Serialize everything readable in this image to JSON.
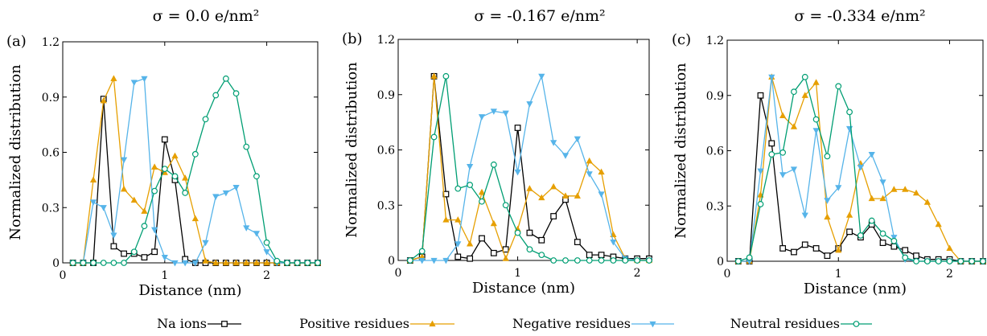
{
  "chart_data": [
    {
      "type": "line",
      "title": "σ = 0.0 e/nm²",
      "panel_label": "(a)",
      "xlabel": "Distance (nm)",
      "ylabel": "Normalized distribution",
      "xlim": [
        0,
        2.5
      ],
      "ylim": [
        0,
        1.2
      ],
      "xticks": [
        "0",
        "1",
        "2"
      ],
      "yticks": [
        "0",
        "0.3",
        "0.6",
        "0.9",
        "1.2"
      ],
      "grid": false,
      "series": [
        {
          "name": "Na ions",
          "color": "#000000",
          "marker": "square",
          "x": [
            0.1,
            0.2,
            0.3,
            0.4,
            0.5,
            0.6,
            0.7,
            0.8,
            0.9,
            1.0,
            1.1,
            1.2,
            1.3,
            1.4,
            1.5,
            1.6,
            1.7,
            1.8,
            1.9,
            2.0,
            2.1,
            2.2,
            2.3,
            2.4,
            2.5
          ],
          "y": [
            0,
            0,
            0,
            0.89,
            0.09,
            0.05,
            0.05,
            0.03,
            0.06,
            0.67,
            0.45,
            0.02,
            0,
            0,
            0,
            0,
            0,
            0,
            0,
            0,
            0,
            0,
            0,
            0,
            0
          ]
        },
        {
          "name": "Positive residues",
          "color": "#E69F00",
          "marker": "triangle-up",
          "x": [
            0.1,
            0.2,
            0.3,
            0.4,
            0.5,
            0.6,
            0.7,
            0.8,
            0.9,
            1.0,
            1.1,
            1.2,
            1.3,
            1.4,
            1.5,
            1.6,
            1.7,
            1.8,
            1.9,
            2.0,
            2.1,
            2.2,
            2.3,
            2.4,
            2.5
          ],
          "y": [
            0,
            0,
            0.45,
            0.88,
            1.0,
            0.4,
            0.34,
            0.28,
            0.52,
            0.49,
            0.58,
            0.46,
            0.24,
            0.01,
            0,
            0,
            0,
            0,
            0,
            0,
            0,
            0,
            0,
            0,
            0
          ]
        },
        {
          "name": "Negative residues",
          "color": "#56B4E9",
          "marker": "triangle-down",
          "x": [
            0.1,
            0.2,
            0.3,
            0.4,
            0.5,
            0.6,
            0.7,
            0.8,
            0.9,
            1.0,
            1.1,
            1.2,
            1.3,
            1.4,
            1.5,
            1.6,
            1.7,
            1.8,
            1.9,
            2.0,
            2.1,
            2.2,
            2.3,
            2.4,
            2.5
          ],
          "y": [
            0,
            0,
            0.33,
            0.3,
            0.15,
            0.56,
            0.98,
            1.0,
            0.18,
            0.03,
            0,
            0,
            0,
            0.11,
            0.36,
            0.38,
            0.41,
            0.19,
            0.16,
            0.06,
            0,
            0,
            0,
            0,
            0
          ]
        },
        {
          "name": "Neutral residues",
          "color": "#009E73",
          "marker": "circle",
          "x": [
            0.1,
            0.2,
            0.3,
            0.4,
            0.5,
            0.6,
            0.7,
            0.8,
            0.9,
            1.0,
            1.1,
            1.2,
            1.3,
            1.4,
            1.5,
            1.6,
            1.7,
            1.8,
            1.9,
            2.0,
            2.1,
            2.2,
            2.3,
            2.4,
            2.5
          ],
          "y": [
            0,
            0,
            0,
            0,
            0,
            0,
            0.06,
            0.2,
            0.39,
            0.51,
            0.47,
            0.38,
            0.59,
            0.78,
            0.91,
            1.0,
            0.92,
            0.63,
            0.47,
            0.11,
            0.01,
            0,
            0,
            0,
            0
          ]
        }
      ]
    },
    {
      "type": "line",
      "title": "σ = -0.167 e/nm²",
      "panel_label": "(b)",
      "xlabel": "Distance (nm)",
      "ylabel": "Normalized distribution",
      "xlim": [
        0,
        2.1
      ],
      "ylim": [
        0,
        1.2
      ],
      "xticks": [
        "0",
        "1",
        "2"
      ],
      "yticks": [
        "0",
        "0.3",
        "0.6",
        "0.9",
        "1.2"
      ],
      "grid": false,
      "series": [
        {
          "name": "Na ions",
          "color": "#000000",
          "marker": "square",
          "x": [
            0.1,
            0.2,
            0.3,
            0.4,
            0.5,
            0.6,
            0.7,
            0.8,
            0.9,
            1.0,
            1.1,
            1.2,
            1.3,
            1.4,
            1.5,
            1.6,
            1.7,
            1.8,
            1.9,
            2.0,
            2.1
          ],
          "y": [
            0,
            0.02,
            1.0,
            0.36,
            0.02,
            0.01,
            0.12,
            0.04,
            0.06,
            0.72,
            0.15,
            0.11,
            0.24,
            0.33,
            0.1,
            0.03,
            0.03,
            0.02,
            0.01,
            0.01,
            0.01
          ]
        },
        {
          "name": "Positive residues",
          "color": "#E69F00",
          "marker": "triangle-up",
          "x": [
            0.1,
            0.2,
            0.3,
            0.4,
            0.5,
            0.6,
            0.7,
            0.8,
            0.9,
            1.0,
            1.1,
            1.2,
            1.3,
            1.4,
            1.5,
            1.6,
            1.7,
            1.8,
            1.9,
            2.0,
            2.1
          ],
          "y": [
            0,
            0.02,
            1.0,
            0.22,
            0.22,
            0.09,
            0.37,
            0.2,
            0.01,
            0.17,
            0.39,
            0.34,
            0.4,
            0.35,
            0.35,
            0.54,
            0.48,
            0.14,
            0.01,
            0,
            0
          ]
        },
        {
          "name": "Negative residues",
          "color": "#56B4E9",
          "marker": "triangle-down",
          "x": [
            0.1,
            0.2,
            0.3,
            0.4,
            0.5,
            0.6,
            0.7,
            0.8,
            0.9,
            1.0,
            1.1,
            1.2,
            1.3,
            1.4,
            1.5,
            1.6,
            1.7,
            1.8,
            1.9,
            2.0,
            2.1
          ],
          "y": [
            0,
            0,
            0,
            0,
            0.09,
            0.51,
            0.78,
            0.81,
            0.8,
            0.48,
            0.85,
            1.0,
            0.64,
            0.57,
            0.66,
            0.47,
            0.36,
            0.1,
            0.01,
            0,
            0
          ]
        },
        {
          "name": "Neutral residues",
          "color": "#009E73",
          "marker": "circle",
          "x": [
            0.1,
            0.2,
            0.3,
            0.4,
            0.5,
            0.6,
            0.7,
            0.8,
            0.9,
            1.0,
            1.1,
            1.2,
            1.3,
            1.4,
            1.5,
            1.6,
            1.7,
            1.8,
            1.9,
            2.0,
            2.1
          ],
          "y": [
            0,
            0.05,
            0.67,
            1.0,
            0.39,
            0.41,
            0.32,
            0.52,
            0.3,
            0.15,
            0.06,
            0.03,
            0,
            0,
            0,
            0,
            0,
            0,
            0,
            0,
            0
          ]
        }
      ]
    },
    {
      "type": "line",
      "title": "σ = -0.334 e/nm²",
      "panel_label": "(c)",
      "xlabel": "Distance (nm)",
      "ylabel": "Normalized distribution",
      "xlim": [
        0,
        2.3
      ],
      "ylim": [
        0,
        1.2
      ],
      "xticks": [
        "0",
        "1",
        "2"
      ],
      "yticks": [
        "0",
        "0.3",
        "0.6",
        "0.9",
        "1.2"
      ],
      "grid": false,
      "series": [
        {
          "name": "Na ions",
          "color": "#000000",
          "marker": "square",
          "x": [
            0.1,
            0.2,
            0.3,
            0.4,
            0.5,
            0.6,
            0.7,
            0.8,
            0.9,
            1.0,
            1.1,
            1.2,
            1.3,
            1.4,
            1.5,
            1.6,
            1.7,
            1.8,
            1.9,
            2.0,
            2.1,
            2.2,
            2.3
          ],
          "y": [
            0,
            0,
            0.9,
            0.64,
            0.07,
            0.05,
            0.09,
            0.07,
            0.03,
            0.07,
            0.16,
            0.13,
            0.2,
            0.1,
            0.08,
            0.06,
            0.03,
            0.01,
            0.01,
            0.01,
            0,
            0,
            0
          ]
        },
        {
          "name": "Positive residues",
          "color": "#E69F00",
          "marker": "triangle-up",
          "x": [
            0.1,
            0.2,
            0.3,
            0.4,
            0.5,
            0.6,
            0.7,
            0.8,
            0.9,
            1.0,
            1.1,
            1.2,
            1.3,
            1.4,
            1.5,
            1.6,
            1.7,
            1.8,
            1.9,
            2.0,
            2.1,
            2.2,
            2.3
          ],
          "y": [
            0,
            0,
            0.36,
            1.0,
            0.79,
            0.73,
            0.9,
            0.97,
            0.24,
            0.06,
            0.25,
            0.53,
            0.34,
            0.34,
            0.39,
            0.39,
            0.37,
            0.32,
            0.2,
            0.07,
            0,
            0,
            0
          ]
        },
        {
          "name": "Negative residues",
          "color": "#56B4E9",
          "marker": "triangle-down",
          "x": [
            0.1,
            0.2,
            0.3,
            0.4,
            0.5,
            0.6,
            0.7,
            0.8,
            0.9,
            1.0,
            1.1,
            1.2,
            1.3,
            1.4,
            1.5,
            1.6,
            1.7,
            1.8,
            1.9,
            2.0,
            2.1,
            2.2,
            2.3
          ],
          "y": [
            0,
            0,
            0.49,
            1.0,
            0.47,
            0.5,
            0.25,
            0.71,
            0.33,
            0.4,
            0.72,
            0.51,
            0.58,
            0.43,
            0.13,
            0.01,
            0,
            0,
            0,
            0,
            0,
            0,
            0
          ]
        },
        {
          "name": "Neutral residues",
          "color": "#009E73",
          "marker": "circle",
          "x": [
            0.1,
            0.2,
            0.3,
            0.4,
            0.5,
            0.6,
            0.7,
            0.8,
            0.9,
            1.0,
            1.1,
            1.2,
            1.3,
            1.4,
            1.5,
            1.6,
            1.7,
            1.8,
            1.9,
            2.0,
            2.1,
            2.2,
            2.3
          ],
          "y": [
            0,
            0.02,
            0.31,
            0.58,
            0.59,
            0.92,
            1.0,
            0.77,
            0.57,
            0.95,
            0.81,
            0.14,
            0.22,
            0.15,
            0.11,
            0.02,
            0,
            0,
            0,
            0,
            0,
            0,
            0
          ]
        }
      ]
    }
  ],
  "legend": {
    "placement": "bottom",
    "items": [
      "Na ions",
      "Positive residues",
      "Negative residues",
      "Neutral residues"
    ]
  }
}
